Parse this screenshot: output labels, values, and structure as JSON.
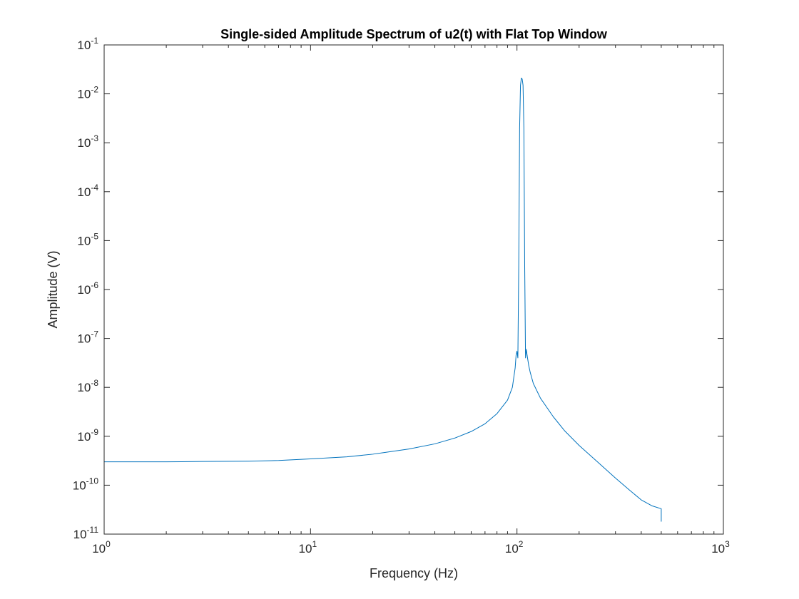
{
  "chart_data": {
    "type": "line",
    "title": "Single-sided Amplitude Spectrum of u2(t) with Flat Top Window",
    "xlabel": "Frequency (Hz)",
    "ylabel": "Amplitude (V)",
    "xscale": "log",
    "yscale": "log",
    "xlim": [
      1,
      1000
    ],
    "ylim": [
      1e-11,
      0.1
    ],
    "grid": false,
    "x_ticks": [
      {
        "base": "10",
        "exp": "0",
        "value": 1
      },
      {
        "base": "10",
        "exp": "1",
        "value": 10
      },
      {
        "base": "10",
        "exp": "2",
        "value": 100
      },
      {
        "base": "10",
        "exp": "3",
        "value": 1000
      }
    ],
    "y_ticks": [
      {
        "base": "10",
        "exp": "-11",
        "value": 1e-11
      },
      {
        "base": "10",
        "exp": "-10",
        "value": 1e-10
      },
      {
        "base": "10",
        "exp": "-9",
        "value": 1e-09
      },
      {
        "base": "10",
        "exp": "-8",
        "value": 1e-08
      },
      {
        "base": "10",
        "exp": "-7",
        "value": 1e-07
      },
      {
        "base": "10",
        "exp": "-6",
        "value": 1e-06
      },
      {
        "base": "10",
        "exp": "-5",
        "value": 1e-05
      },
      {
        "base": "10",
        "exp": "-4",
        "value": 0.0001
      },
      {
        "base": "10",
        "exp": "-3",
        "value": 0.001
      },
      {
        "base": "10",
        "exp": "-2",
        "value": 0.01
      },
      {
        "base": "10",
        "exp": "-1",
        "value": 0.1
      }
    ],
    "series": [
      {
        "color": "#0072bd",
        "x": [
          1,
          2,
          3,
          5,
          7,
          10,
          15,
          20,
          30,
          40,
          50,
          60,
          70,
          80,
          90,
          95,
          98,
          99,
          100,
          101,
          102,
          103,
          104,
          105,
          106,
          107,
          108,
          109,
          110,
          111,
          112,
          114,
          116,
          120,
          130,
          150,
          170,
          200,
          250,
          300,
          350,
          400,
          450,
          500,
          500
        ],
        "y": [
          3e-10,
          3e-10,
          3.05e-10,
          3.1e-10,
          3.2e-10,
          3.45e-10,
          3.8e-10,
          4.3e-10,
          5.5e-10,
          7e-10,
          9.2e-10,
          1.25e-09,
          1.8e-09,
          2.9e-09,
          5.5e-09,
          1e-08,
          2.5e-08,
          4.5e-08,
          5.5e-08,
          4e-08,
          3e-06,
          0.002,
          0.015,
          0.021,
          0.02,
          0.015,
          0.002,
          3e-06,
          4e-08,
          6e-08,
          4.5e-08,
          2.8e-08,
          2e-08,
          1.2e-08,
          6e-09,
          2.5e-09,
          1.3e-09,
          6.5e-10,
          2.8e-10,
          1.4e-10,
          8e-11,
          5e-11,
          3.8e-11,
          3.3e-11,
          1.8e-11
        ]
      }
    ]
  }
}
